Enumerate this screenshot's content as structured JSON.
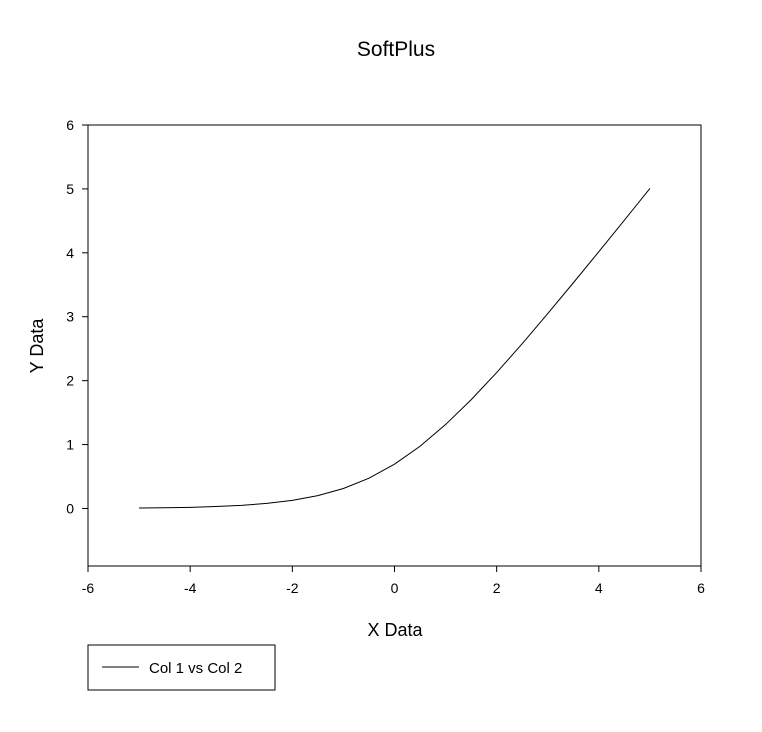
{
  "chart_data": {
    "type": "line",
    "title": "SoftPlus",
    "xlabel": "X Data",
    "ylabel": "Y Data",
    "xlim": [
      -6,
      6
    ],
    "ylim": [
      -0.9,
      6
    ],
    "xticks": [
      -6,
      -4,
      -2,
      0,
      2,
      4,
      6
    ],
    "yticks": [
      0,
      1,
      2,
      3,
      4,
      5,
      6
    ],
    "grid": false,
    "legend_position": "bottom-left",
    "series": [
      {
        "name": "Col 1 vs Col 2",
        "color": "#000000",
        "x": [
          -5.0,
          -4.5,
          -4.0,
          -3.5,
          -3.0,
          -2.5,
          -2.0,
          -1.5,
          -1.0,
          -0.5,
          0.0,
          0.5,
          1.0,
          1.5,
          2.0,
          2.5,
          3.0,
          3.5,
          4.0,
          4.5,
          5.0
        ],
        "y": [
          0.007,
          0.011,
          0.018,
          0.03,
          0.049,
          0.079,
          0.127,
          0.201,
          0.313,
          0.474,
          0.693,
          0.974,
          1.313,
          1.701,
          2.127,
          2.579,
          3.049,
          3.53,
          4.018,
          4.511,
          5.007
        ]
      }
    ]
  }
}
